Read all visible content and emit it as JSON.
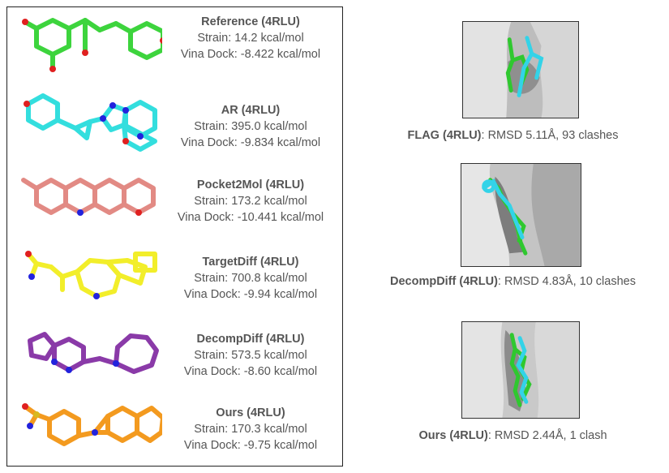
{
  "molecules": [
    {
      "name": "Reference (4RLU)",
      "strain": "Strain: 14.2 kcal/mol",
      "vina": "Vina Dock: -8.422 kcal/mol",
      "color": "#3dd43d"
    },
    {
      "name": "AR (4RLU)",
      "strain": "Strain: 395.0 kcal/mol",
      "vina": "Vina Dock: -9.834 kcal/mol",
      "color": "#33dede"
    },
    {
      "name": "Pocket2Mol (4RLU)",
      "strain": "Strain: 173.2 kcal/mol",
      "vina": "Vina Dock: -10.441 kcal/mol",
      "color": "#e28a84"
    },
    {
      "name": "TargetDiff (4RLU)",
      "strain": "Strain: 700.8 kcal/mol",
      "vina": "Vina Dock: -9.94 kcal/mol",
      "color": "#f2ee2a"
    },
    {
      "name": "DecompDiff (4RLU)",
      "strain": "Strain: 573.5 kcal/mol",
      "vina": "Vina Dock: -8.60 kcal/mol",
      "color": "#8a3aa8"
    },
    {
      "name": "Ours (4RLU)",
      "strain": "Strain: 170.3 kcal/mol",
      "vina": "Vina Dock: -9.75 kcal/mol",
      "color": "#f39a1f"
    }
  ],
  "poses": [
    {
      "method": "FLAG (4RLU)",
      "detail": ": RMSD 5.11Å, 93 clashes"
    },
    {
      "method": "DecompDiff (4RLU)",
      "detail": ": RMSD 4.83Å, 10 clashes"
    },
    {
      "method": "Ours (4RLU)",
      "detail": ": RMSD 2.44Å, 1 clash"
    }
  ],
  "colors": {
    "reference_pose": "#2fc82f",
    "generated_pose": "#33d3e8",
    "surface": "#d9d9d9"
  }
}
